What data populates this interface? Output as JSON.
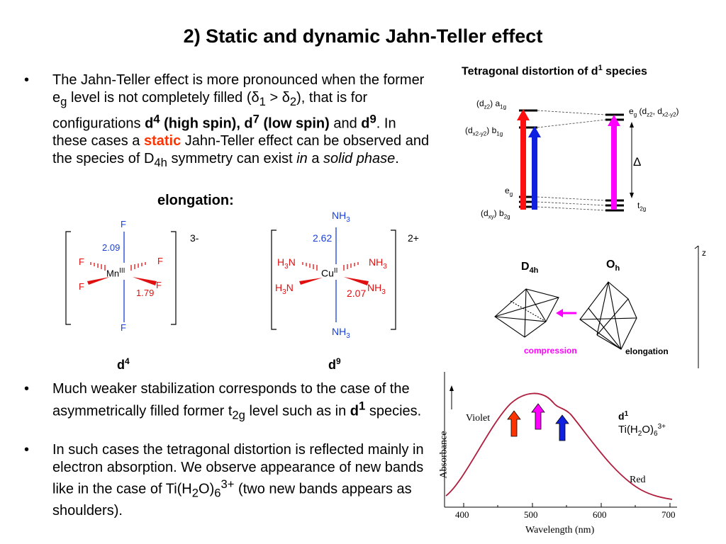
{
  "title": "2) Static and dynamic Jahn-Teller effect",
  "bullets": {
    "b1": {
      "p1": "The Jahn-Teller effect is more pronounced when the former e",
      "p1_sub": "g",
      "p2": " level is not completely filled (δ",
      "p2_sub": "1",
      "p3": " > δ",
      "p3_sub": "2",
      "p4": "), that is for configurations ",
      "bold1": "d",
      "bold1_sup": "4",
      "bold2": " (high spin), d",
      "bold2_sup": "7",
      "bold3": " (low spin)",
      "p5": " and ",
      "bold4": "d",
      "bold4_sup": "9",
      "p6": ". In these cases a ",
      "static_word": "static",
      "p7": " Jahn-Teller effect can be observed and the species of D",
      "p7_sub": "4h",
      "p8": " symmetry can exist ",
      "italic1": "in",
      "p9": " a ",
      "italic2": "solid phase",
      "p10": "."
    },
    "b2": {
      "p1": "Much weaker stabilization corresponds to the case of the asymmetrically filled former t",
      "p1_sub": "2g",
      "p2": " level such as in ",
      "bold": "d",
      "bold_sup": "1",
      "p3": " species."
    },
    "b3": {
      "p1": "In such cases the tetragonal distortion is reflected mainly in electron absorption. We observe appearance of new bands like in the case of Ti(H",
      "sub1": "2",
      "p2": "O)",
      "sub2": "6",
      "sup": "3+",
      "p3": " (two new bands appears as shoulders)."
    }
  },
  "elongation_heading": "elongation:",
  "mn_complex": {
    "charge": "3-",
    "metal": "Mn",
    "ox": "III",
    "ligand": "F",
    "axial_length": "2.09",
    "equatorial_length": "1.79",
    "config": "d",
    "config_sup": "4"
  },
  "cu_complex": {
    "charge": "2+",
    "metal": "Cu",
    "ox": "II",
    "ligand_top": "NH",
    "ligand_eq": "H",
    "ligand_sub": "3",
    "N": "N",
    "axial_length": "2.62",
    "equatorial_length": "2.07",
    "config": "d",
    "config_sup": "9"
  },
  "diagram": {
    "title": "Tetragonal distortion of d",
    "title_sup": "1",
    "title_end": " species",
    "a1g": "(d",
    "a1g_sub": "z2",
    "a1g_end": ") a",
    "a1g_sub2": "1g",
    "b1g": "(d",
    "b1g_sub": "x2-y2",
    "b1g_end": ") b",
    "b1g_sub2": "1g",
    "eg_left": "e",
    "eg_left_sub": "g",
    "b2g": "(d",
    "b2g_sub": "xy",
    "b2g_end": ") b",
    "b2g_sub2": "2g",
    "eg_right": "e",
    "eg_right_sub": "g",
    "eg_right_mid": " (d",
    "eg_right_sub2": "z2",
    "eg_right_comma": ", d",
    "eg_right_sub3": "x2-y2",
    "eg_right_end": ")",
    "t2g": "t",
    "t2g_sub": "2g",
    "delta": "Δ",
    "colors": {
      "red": "#ff1010",
      "blue": "#1020e0",
      "magenta": "#ff00ff"
    }
  },
  "octahedra": {
    "z_label": "z",
    "d4h": "D",
    "d4h_sub": "4h",
    "oh": "O",
    "oh_sub": "h",
    "compression": "compression",
    "elongation": "elongation"
  },
  "spectrum": {
    "violet": "Violet",
    "red": "Red",
    "ylabel": "Absorbance",
    "xlabel": "Wavelength (nm)",
    "x_ticks": [
      "400",
      "500",
      "600",
      "700"
    ],
    "species": "d",
    "species_sup": "1",
    "formula": "Ti(H",
    "formula_sub1": "2",
    "formula_mid": "O)",
    "formula_sub2": "6",
    "formula_sup": "3+",
    "arrow_colors": [
      "#ff3300",
      "#ff00ff",
      "#1020e0"
    ]
  }
}
